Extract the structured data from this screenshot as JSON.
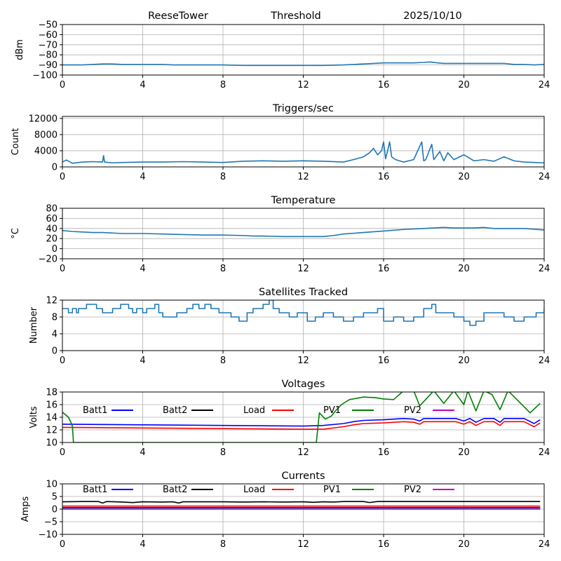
{
  "header": {
    "station": "ReeseTower",
    "mode": "Threshold",
    "date": "2025/10/10"
  },
  "chart_data": [
    {
      "type": "line",
      "id": "threshold",
      "title": "",
      "xlabel": "",
      "ylabel": "dBm",
      "xlim": [
        0,
        24
      ],
      "ylim": [
        -100,
        -50
      ],
      "xticks": [
        0,
        4,
        8,
        12,
        16,
        20,
        24
      ],
      "yticks": [
        -100,
        -90,
        -80,
        -70,
        -60,
        -50
      ],
      "ytick_labels": [
        "−100",
        "−90",
        "−80",
        "−70",
        "−60",
        "−50"
      ],
      "grid": true,
      "series": [
        {
          "name": "Threshold",
          "color": "#1f77b4",
          "x": [
            0,
            1,
            1.5,
            2,
            2.5,
            3,
            4,
            5,
            5.5,
            6,
            7,
            8,
            9,
            10,
            11,
            12,
            13,
            14,
            14.5,
            15,
            15.5,
            16,
            16.5,
            17,
            17.5,
            18,
            18.3,
            18.7,
            19,
            20,
            21,
            22,
            22.5,
            23,
            23.5,
            24
          ],
          "y": [
            -90,
            -90,
            -89.5,
            -89,
            -89,
            -89.5,
            -89.5,
            -89.5,
            -90,
            -90,
            -90,
            -90,
            -90.5,
            -90.5,
            -90.5,
            -90.5,
            -90.5,
            -90,
            -89.5,
            -89,
            -88.5,
            -88,
            -88,
            -88,
            -88,
            -87.5,
            -87,
            -88,
            -88.5,
            -88.5,
            -88.5,
            -88.5,
            -89.5,
            -89.5,
            -90,
            -89.5
          ]
        }
      ]
    },
    {
      "type": "line",
      "id": "triggers",
      "title": "Triggers/sec",
      "xlabel": "",
      "ylabel": "Count",
      "xlim": [
        0,
        24
      ],
      "ylim": [
        0,
        12500
      ],
      "xticks": [
        0,
        4,
        8,
        12,
        16,
        20,
        24
      ],
      "yticks": [
        0,
        4000,
        8000,
        12000
      ],
      "ytick_labels": [
        "0",
        "4000",
        "8000",
        "12000"
      ],
      "grid": true,
      "series": [
        {
          "name": "Triggers/sec",
          "color": "#1f77b4",
          "x": [
            0,
            0.2,
            0.5,
            1,
            1.5,
            2,
            2.05,
            2.1,
            2.5,
            3,
            4,
            5,
            6,
            7,
            8,
            9,
            10,
            11,
            12,
            13,
            14,
            14.5,
            15,
            15.3,
            15.5,
            15.7,
            15.9,
            16,
            16.1,
            16.2,
            16.3,
            16.4,
            16.6,
            17,
            17.5,
            17.9,
            18,
            18.1,
            18.4,
            18.5,
            18.8,
            19,
            19.2,
            19.5,
            20,
            20.5,
            21,
            21.5,
            22,
            22.5,
            23,
            24
          ],
          "y": [
            1200,
            1700,
            900,
            1200,
            1300,
            1200,
            2800,
            1200,
            1000,
            1100,
            1200,
            1200,
            1300,
            1200,
            1100,
            1400,
            1500,
            1400,
            1500,
            1400,
            1200,
            1800,
            2500,
            3500,
            4600,
            3000,
            4000,
            6200,
            2000,
            4000,
            6200,
            2500,
            1800,
            1200,
            1800,
            6200,
            1500,
            1800,
            5600,
            1800,
            3800,
            1500,
            3500,
            1800,
            3000,
            1500,
            1800,
            1400,
            2500,
            1500,
            1200,
            1000
          ]
        }
      ]
    },
    {
      "type": "line",
      "id": "temperature",
      "title": "Temperature",
      "xlabel": "",
      "ylabel": "°C",
      "xlim": [
        0,
        24
      ],
      "ylim": [
        -20,
        80
      ],
      "xticks": [
        0,
        4,
        8,
        12,
        16,
        20,
        24
      ],
      "yticks": [
        -20,
        0,
        20,
        40,
        60,
        80
      ],
      "ytick_labels": [
        "−20",
        "0",
        "20",
        "40",
        "60",
        "80"
      ],
      "grid": true,
      "series": [
        {
          "name": "Temperature",
          "color": "#1f77b4",
          "x": [
            0,
            0.5,
            1,
            1.5,
            2,
            3,
            4,
            5,
            6,
            7,
            8,
            9,
            9.5,
            10,
            11,
            12,
            13,
            13.5,
            14,
            15,
            16,
            17,
            18,
            19,
            19.5,
            20,
            20.5,
            21,
            21.5,
            22,
            23,
            24
          ],
          "y": [
            36,
            34,
            33,
            32,
            32,
            30,
            30,
            29,
            28,
            27,
            27,
            26,
            25,
            25,
            24,
            24,
            24,
            26,
            29,
            32,
            35,
            38,
            40,
            42,
            41,
            41,
            41,
            42,
            40,
            40,
            40,
            37
          ]
        }
      ]
    },
    {
      "type": "line",
      "id": "satellites",
      "title": "Satellites Tracked",
      "xlabel": "",
      "ylabel": "Number",
      "xlim": [
        0,
        24
      ],
      "ylim": [
        0,
        12
      ],
      "xticks": [
        0,
        4,
        8,
        12,
        16,
        20,
        24
      ],
      "yticks": [
        0,
        4,
        8,
        12
      ],
      "ytick_labels": [
        "0",
        "4",
        "8",
        "12"
      ],
      "grid": true,
      "step": true,
      "series": [
        {
          "name": "Satellites",
          "color": "#1f77b4",
          "x": [
            0,
            0.3,
            0.5,
            0.7,
            0.8,
            1.2,
            1.7,
            2,
            2.5,
            2.9,
            3.3,
            3.5,
            3.7,
            4,
            4.2,
            4.6,
            4.8,
            5,
            5.7,
            6.2,
            6.5,
            6.8,
            7.1,
            7.4,
            7.8,
            8.4,
            8.8,
            9.2,
            9.5,
            10,
            10.3,
            10.5,
            10.8,
            11.3,
            11.7,
            12.2,
            12.6,
            13,
            13.5,
            14,
            14.5,
            15,
            15.7,
            16,
            16.5,
            17,
            17.5,
            18,
            18.4,
            18.6,
            19,
            19.5,
            20,
            20.3,
            20.6,
            21,
            21.5,
            22,
            22.5,
            23,
            23.6,
            24
          ],
          "y": [
            10,
            9,
            10,
            9,
            10,
            11,
            10,
            9,
            10,
            11,
            10,
            9,
            10,
            9,
            10,
            11,
            9,
            8,
            9,
            10,
            11,
            10,
            11,
            10,
            9,
            8,
            7,
            9,
            10,
            11,
            12,
            10,
            9,
            8,
            9,
            7,
            8,
            9,
            8,
            7,
            8,
            9,
            10,
            7,
            8,
            7,
            8,
            10,
            11,
            9,
            9,
            8,
            7,
            6,
            7,
            9,
            9,
            8,
            7,
            8,
            9,
            10
          ]
        }
      ]
    },
    {
      "type": "line",
      "id": "voltages",
      "title": "Voltages",
      "xlabel": "",
      "ylabel": "Volts",
      "xlim": [
        0,
        24
      ],
      "ylim": [
        10,
        18
      ],
      "xticks": [
        0,
        4,
        8,
        12,
        16,
        20,
        24
      ],
      "yticks": [
        10,
        12,
        14,
        16,
        18
      ],
      "ytick_labels": [
        "10",
        "12",
        "14",
        "16",
        "18"
      ],
      "grid": true,
      "legend": "inside-top",
      "series": [
        {
          "name": "Batt1",
          "color": "#0000ff",
          "x": [
            0,
            4,
            8,
            12,
            13,
            14,
            14.5,
            15,
            16,
            16.5,
            17,
            17.5,
            17.8,
            18,
            19,
            19.6,
            20,
            20.3,
            20.6,
            21,
            21.5,
            21.8,
            22,
            23,
            23.5,
            23.8
          ],
          "y": [
            12.9,
            12.8,
            12.7,
            12.6,
            12.7,
            13.0,
            13.3,
            13.5,
            13.6,
            13.7,
            13.8,
            13.7,
            13.4,
            13.8,
            13.8,
            13.8,
            13.4,
            13.8,
            13.2,
            13.8,
            13.8,
            13.2,
            13.8,
            13.8,
            13.0,
            13.6
          ]
        },
        {
          "name": "Batt2",
          "color": "#000000",
          "x": [],
          "y": []
        },
        {
          "name": "Load",
          "color": "#ff0000",
          "x": [
            0,
            4,
            8,
            12,
            13,
            14,
            14.5,
            15,
            16,
            16.5,
            17,
            17.5,
            17.8,
            18,
            19,
            19.6,
            20,
            20.3,
            20.6,
            21,
            21.5,
            21.8,
            22,
            23,
            23.5,
            23.8
          ],
          "y": [
            12.4,
            12.3,
            12.2,
            12.1,
            12.1,
            12.5,
            12.8,
            13.0,
            13.1,
            13.2,
            13.3,
            13.2,
            12.9,
            13.3,
            13.3,
            13.3,
            12.9,
            13.3,
            12.7,
            13.3,
            13.3,
            12.7,
            13.3,
            13.3,
            12.5,
            13.1
          ]
        },
        {
          "name": "PV1",
          "color": "#008000",
          "x": [
            0,
            0.3,
            0.45,
            0.5,
            0.55,
            12.65,
            12.8,
            13.1,
            13.4,
            13.6,
            13.9,
            14.3,
            15,
            15.6,
            16,
            16.5,
            17,
            17.5,
            17.8,
            18.5,
            19,
            19.5,
            20,
            20.2,
            20.6,
            21,
            21.4,
            21.8,
            22.2,
            23.3,
            23.8
          ],
          "y": [
            14.8,
            14,
            13,
            12.5,
            10,
            10,
            14.7,
            13.7,
            14.2,
            15.0,
            16.0,
            16.8,
            17.2,
            17.1,
            16.9,
            16.8,
            18.2,
            18.2,
            15.8,
            18.2,
            16.2,
            18.2,
            16.0,
            18.2,
            15.0,
            18.2,
            17.6,
            15.2,
            18.2,
            14.7,
            16.2
          ]
        },
        {
          "name": "PV2",
          "color": "#bf00bf",
          "x": [],
          "y": []
        }
      ]
    },
    {
      "type": "line",
      "id": "currents",
      "title": "Currents",
      "xlabel": "",
      "ylabel": "Amps",
      "xlim": [
        0,
        24
      ],
      "ylim": [
        -10,
        10
      ],
      "xticks": [
        0,
        4,
        8,
        12,
        16,
        20,
        24
      ],
      "yticks": [
        -10,
        -5,
        0,
        5,
        10
      ],
      "ytick_labels": [
        "−10",
        "−5",
        "0",
        "5",
        "10"
      ],
      "grid": true,
      "legend": "inside-top",
      "series": [
        {
          "name": "Batt1",
          "color": "#0000ff",
          "x": [
            0,
            23.8
          ],
          "y": [
            0.6,
            0.6
          ]
        },
        {
          "name": "Batt2",
          "color": "#000000",
          "x": [
            0,
            1,
            1.8,
            2,
            2.2,
            3,
            3.5,
            4,
            5,
            5.5,
            5.8,
            6,
            7,
            8,
            9,
            10,
            11,
            12,
            12.5,
            13,
            13.5,
            14,
            15,
            15.3,
            15.7,
            16,
            23.8
          ],
          "y": [
            2.9,
            3.0,
            3.0,
            2.4,
            3.0,
            2.8,
            2.6,
            2.9,
            2.8,
            2.9,
            2.4,
            2.9,
            2.9,
            2.9,
            2.8,
            2.9,
            2.8,
            2.9,
            2.7,
            2.9,
            2.8,
            3.0,
            3.0,
            2.6,
            3.0,
            3.0,
            3.0
          ]
        },
        {
          "name": "Load",
          "color": "#ff0000",
          "x": [
            0,
            23.8
          ],
          "y": [
            1.2,
            1.2
          ]
        },
        {
          "name": "PV1",
          "color": "#008000",
          "x": [
            0,
            23.8
          ],
          "y": [
            0.1,
            0.1
          ]
        },
        {
          "name": "PV2",
          "color": "#bf00bf",
          "x": [
            0,
            23.8
          ],
          "y": [
            0.0,
            0.0
          ]
        }
      ]
    }
  ]
}
